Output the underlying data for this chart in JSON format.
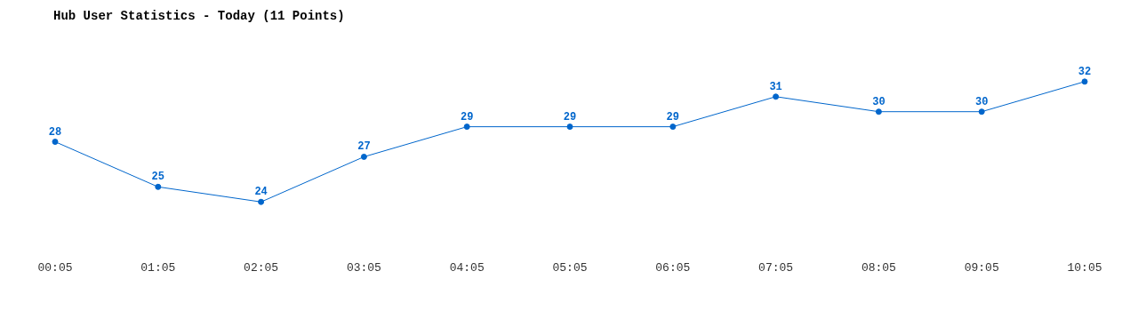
{
  "chart_data": {
    "type": "line",
    "title": "Hub User Statistics - Today (11 Points)",
    "categories": [
      "00:05",
      "01:05",
      "02:05",
      "03:05",
      "04:05",
      "05:05",
      "06:05",
      "07:05",
      "08:05",
      "09:05",
      "10:05"
    ],
    "series": [
      {
        "color": "#0066cc",
        "values": [
          28,
          25,
          24,
          27,
          29,
          29,
          29,
          31,
          30,
          30,
          32
        ]
      }
    ],
    "data_labels": true,
    "marker": "circle",
    "line_style": "solid",
    "grid": false,
    "legend": false
  }
}
